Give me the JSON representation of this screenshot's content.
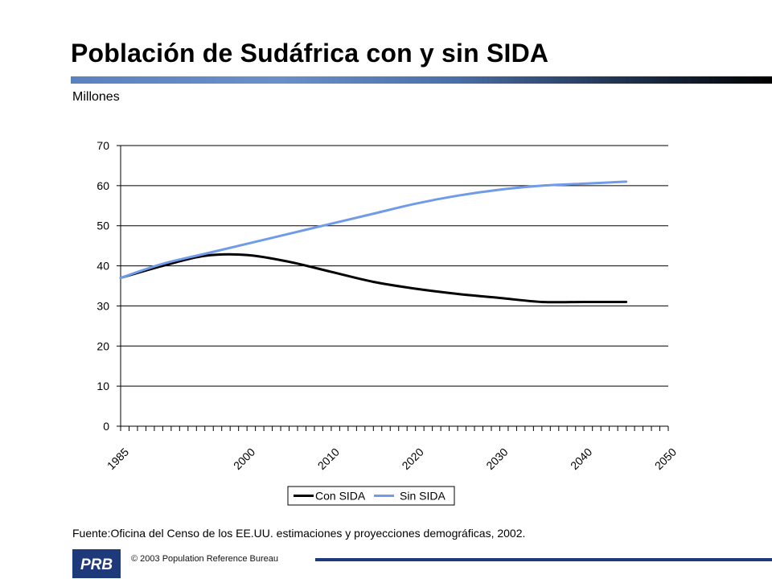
{
  "slide": {
    "title": "Población de Sudáfrica con y sin SIDA",
    "units_label": "Millones",
    "source": "Fuente:Oficina del Censo de los EE.UU. estimaciones y proyecciones demográficas, 2002.",
    "copyright": "© 2003 Population Reference Bureau",
    "logo": "PRB",
    "title_bar_colors": [
      "#5b82c0",
      "#000000"
    ],
    "logo_color": "#1f3a7a"
  },
  "chart_data": {
    "type": "line",
    "title": "",
    "xlabel": "",
    "ylabel": "Millones",
    "xlim": [
      1985,
      2050
    ],
    "ylim": [
      0,
      70
    ],
    "yticks": [
      0,
      10,
      20,
      30,
      40,
      50,
      60,
      70
    ],
    "xtick_labels": [
      1985,
      2000,
      2010,
      2020,
      2030,
      2040,
      2050
    ],
    "grid": true,
    "legend_position": "bottom-center",
    "x": [
      1985,
      1990,
      1995,
      2000,
      2005,
      2010,
      2015,
      2020,
      2025,
      2030,
      2035,
      2040,
      2045
    ],
    "series": [
      {
        "name": "Con SIDA",
        "color": "#000000",
        "values": [
          37,
          40,
          42.5,
          42.7,
          41,
          38.5,
          36,
          34.3,
          33,
          32,
          31,
          31,
          31
        ]
      },
      {
        "name": "Sin SIDA",
        "color": "#6f9be8",
        "values": [
          37,
          40.5,
          43,
          45.5,
          48,
          50.5,
          53,
          55.5,
          57.5,
          59,
          60,
          60.5,
          61
        ]
      }
    ]
  }
}
